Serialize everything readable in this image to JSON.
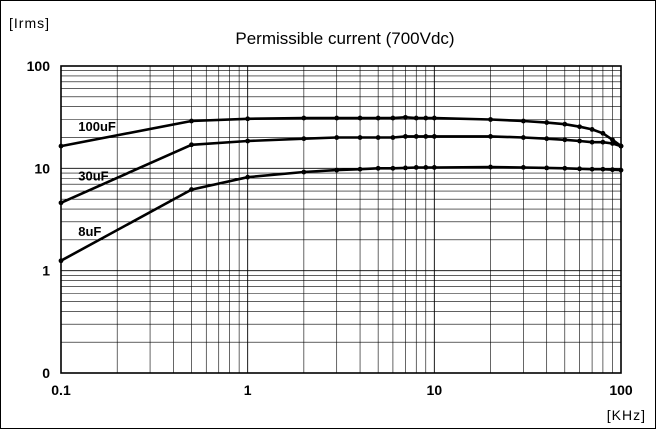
{
  "chart_data": {
    "type": "line",
    "title": "Permissible current (700Vdc)",
    "y_unit_label": "[Irms]",
    "x_unit_label": "[KHz]",
    "x_scale": "log",
    "y_scale": "log",
    "xlim": [
      0.1,
      100
    ],
    "ylim": [
      0.1,
      100
    ],
    "x_ticks": [
      {
        "value": 0.1,
        "label": "0.1"
      },
      {
        "value": 1,
        "label": "1"
      },
      {
        "value": 10,
        "label": "10"
      },
      {
        "value": 100,
        "label": "100"
      }
    ],
    "y_ticks": [
      {
        "value": 0.1,
        "label": "0"
      },
      {
        "value": 1,
        "label": "1"
      },
      {
        "value": 10,
        "label": "10"
      },
      {
        "value": 100,
        "label": "100"
      }
    ],
    "grid": true,
    "series": [
      {
        "name": "100uF",
        "x": [
          0.1,
          0.5,
          1,
          2,
          3,
          4,
          5,
          6,
          7,
          8,
          9,
          10,
          20,
          30,
          40,
          50,
          60,
          70,
          80,
          90,
          100
        ],
        "y": [
          16.5,
          29,
          30.5,
          31,
          31,
          31,
          31,
          31,
          31.5,
          31,
          31,
          31,
          30,
          29,
          28,
          27,
          25.5,
          24,
          22,
          19,
          16.5
        ]
      },
      {
        "name": "30uF",
        "x": [
          0.1,
          0.5,
          1,
          2,
          3,
          4,
          5,
          6,
          7,
          8,
          9,
          10,
          20,
          30,
          40,
          50,
          60,
          70,
          80,
          90,
          100
        ],
        "y": [
          4.6,
          17,
          18.5,
          19.5,
          20,
          20,
          20,
          20,
          20.5,
          20.5,
          20.5,
          20.5,
          20.5,
          20,
          19.5,
          19,
          18.5,
          18,
          18,
          17.5,
          16.5
        ]
      },
      {
        "name": "8uF",
        "x": [
          0.1,
          0.5,
          1,
          2,
          3,
          4,
          5,
          6,
          7,
          8,
          9,
          10,
          20,
          30,
          40,
          50,
          60,
          70,
          80,
          90,
          100
        ],
        "y": [
          1.25,
          6.2,
          8.2,
          9.2,
          9.6,
          9.8,
          10,
          10,
          10.1,
          10.2,
          10.2,
          10.2,
          10.3,
          10.2,
          10.1,
          10,
          9.9,
          9.8,
          9.8,
          9.7,
          9.6
        ]
      }
    ]
  }
}
